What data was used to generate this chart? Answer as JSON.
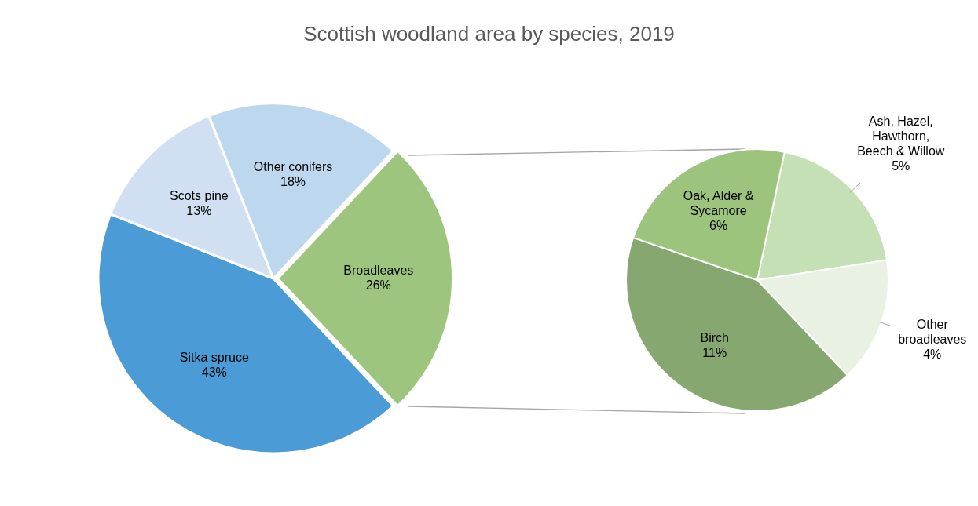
{
  "chart_data": [
    {
      "type": "pie",
      "title": "Scottish woodland area by species, 2019",
      "categories": [
        "Broadleaves",
        "Sitka spruce",
        "Scots pine",
        "Other conifers"
      ],
      "values": [
        26,
        43,
        13,
        18
      ],
      "value_labels": [
        "26%",
        "43%",
        "13%",
        "18%"
      ],
      "colors": [
        "#9dc57e",
        "#4a9bd6",
        "#d0e0f2",
        "#bdd7ee"
      ],
      "legend": false
    },
    {
      "type": "pie",
      "categories": [
        "Ash, Hazel, Hawthorn, Beech & Willow",
        "Other broadleaves",
        "Birch",
        "Oak, Alder & Sycamore"
      ],
      "values": [
        5,
        4,
        11,
        6
      ],
      "value_labels": [
        "5%",
        "4%",
        "11%",
        "6%"
      ],
      "colors": [
        "#c5e0b4",
        "#e9f2e2",
        "#86a870",
        "#9cc47c"
      ],
      "legend": false
    }
  ]
}
